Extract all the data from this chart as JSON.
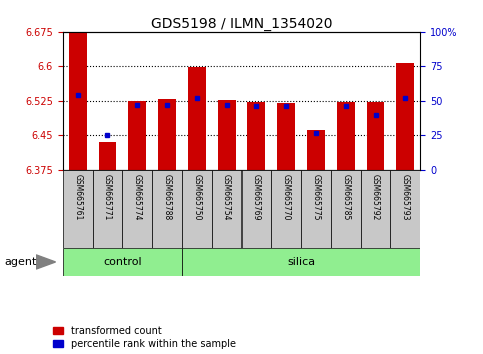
{
  "title": "GDS5198 / ILMN_1354020",
  "samples": [
    "GSM665761",
    "GSM665771",
    "GSM665774",
    "GSM665788",
    "GSM665750",
    "GSM665754",
    "GSM665769",
    "GSM665770",
    "GSM665775",
    "GSM665785",
    "GSM665792",
    "GSM665793"
  ],
  "control_count": 4,
  "bar_bottom": 6.375,
  "transformed_counts": [
    6.675,
    6.435,
    6.525,
    6.53,
    6.598,
    6.528,
    6.522,
    6.52,
    6.462,
    6.522,
    6.522,
    6.607
  ],
  "percentile_ranks_pct": [
    54,
    25,
    47,
    47,
    52,
    47,
    46,
    46,
    27,
    46,
    40,
    52
  ],
  "y_min": 6.375,
  "y_max": 6.675,
  "y_ticks_left": [
    6.375,
    6.45,
    6.525,
    6.6,
    6.675
  ],
  "y_ticks_right": [
    0,
    25,
    50,
    75,
    100
  ],
  "right_tick_labels": [
    "0",
    "25",
    "50",
    "75",
    "100%"
  ],
  "bar_color": "#CC0000",
  "dot_color": "#0000CC",
  "left_tick_color": "#CC0000",
  "right_tick_color": "#0000CC",
  "group_bg_color": "#90EE90",
  "sample_box_color": "#C8C8C8",
  "legend_items": [
    "transformed count",
    "percentile rank within the sample"
  ],
  "agent_label": "agent",
  "control_label": "control",
  "silica_label": "silica",
  "grid_linestyle": ":",
  "grid_linewidth": 0.8
}
